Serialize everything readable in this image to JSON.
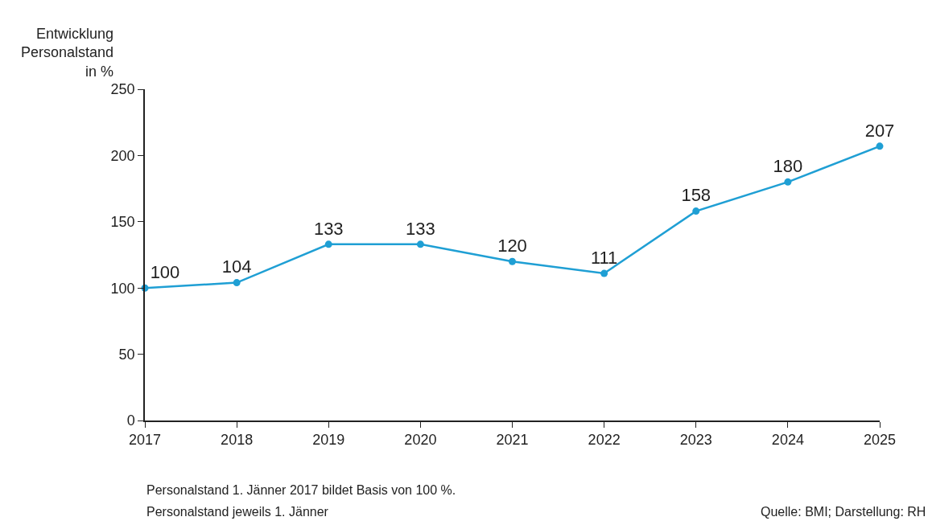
{
  "chart_data": {
    "type": "line",
    "ylabel": "Entwicklung\nPersonalstand\nin %",
    "x": [
      2017,
      2018,
      2019,
      2020,
      2021,
      2022,
      2023,
      2024,
      2025
    ],
    "values": [
      100,
      104,
      133,
      133,
      120,
      111,
      158,
      180,
      207
    ],
    "color": "#1f9fd4",
    "marker": "circle",
    "line_style": "solid",
    "data_labels": true,
    "grid": false,
    "xlim": [
      2017,
      2025
    ],
    "xticks": [
      2017,
      2018,
      2019,
      2020,
      2021,
      2022,
      2023,
      2024,
      2025
    ],
    "ylim": [
      0,
      250
    ],
    "yticks": [
      0,
      50,
      100,
      150,
      200,
      250
    ],
    "annotations": [
      "Personalstand 1. Jänner 2017 bildet Basis von 100 %.",
      "Personalstand jeweils 1. Jänner",
      "Quelle: BMI; Darstellung: RH"
    ]
  }
}
